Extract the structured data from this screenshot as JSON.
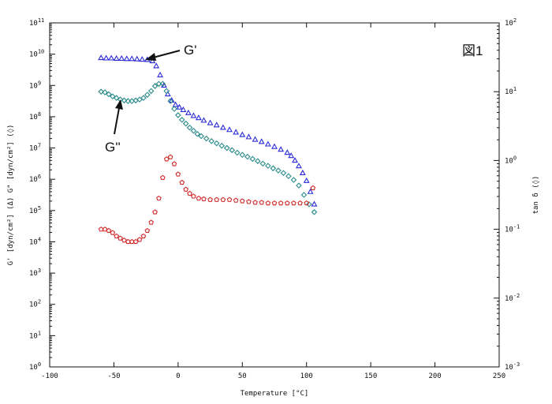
{
  "chart_data": {
    "type": "scatter",
    "figure_label": "図1",
    "xlabel": "Temperature [°C]",
    "ylabel_left": "G' [dyn/cm²] (Δ) G\" [dyn/cm²] (◊)",
    "ylabel_right": "tan δ (◊)",
    "xlim": [
      -100,
      250
    ],
    "x_ticks": [
      -100,
      -50,
      0,
      50,
      100,
      150,
      200,
      250
    ],
    "y_left_scale": "log",
    "y_left_lim_exp": [
      0,
      11
    ],
    "y_left_tick_exps": [
      0,
      1,
      2,
      3,
      4,
      5,
      6,
      7,
      8,
      9,
      10,
      11
    ],
    "y_right_scale": "log",
    "y_right_lim_exp": [
      -3,
      2
    ],
    "y_right_tick_exps": [
      -3,
      -2,
      -1,
      0,
      1,
      2
    ],
    "grid": false,
    "annotations": [
      {
        "text": "G'",
        "points_to_series": "G'"
      },
      {
        "text": "G''",
        "points_to_series": "G''"
      }
    ],
    "series": [
      {
        "id": "Gprime",
        "axis": "left",
        "marker": "triangle",
        "color": "#2a2ad8",
        "x": [
          -60,
          -56,
          -52,
          -48,
          -44,
          -40,
          -36,
          -32,
          -28,
          -24,
          -20,
          -17,
          -14,
          -11,
          -8,
          -5,
          -2,
          1,
          4,
          8,
          12,
          16,
          20,
          25,
          30,
          35,
          40,
          45,
          50,
          55,
          60,
          65,
          70,
          75,
          80,
          85,
          88,
          91,
          94,
          97,
          100,
          103,
          106
        ],
        "log10_y": [
          9.88,
          9.87,
          9.87,
          9.86,
          9.86,
          9.85,
          9.85,
          9.84,
          9.83,
          9.82,
          9.78,
          9.62,
          9.33,
          9.0,
          8.72,
          8.52,
          8.38,
          8.3,
          8.22,
          8.12,
          8.03,
          7.96,
          7.88,
          7.8,
          7.73,
          7.65,
          7.58,
          7.5,
          7.42,
          7.35,
          7.27,
          7.2,
          7.12,
          7.04,
          6.95,
          6.85,
          6.75,
          6.6,
          6.42,
          6.2,
          5.95,
          5.6,
          5.2
        ]
      },
      {
        "id": "Gdoubleprime",
        "axis": "left",
        "marker": "diamond",
        "color": "#2a8a8a",
        "x": [
          -60,
          -57,
          -54,
          -51,
          -48,
          -45,
          -42,
          -39,
          -36,
          -33,
          -30,
          -27,
          -24,
          -21,
          -18,
          -15,
          -12,
          -9,
          -6,
          -3,
          0,
          3,
          6,
          9,
          12,
          15,
          18,
          22,
          26,
          30,
          34,
          38,
          42,
          46,
          50,
          54,
          58,
          62,
          66,
          70,
          74,
          78,
          82,
          86,
          90,
          94,
          98,
          102,
          106
        ],
        "log10_y": [
          8.8,
          8.78,
          8.72,
          8.65,
          8.6,
          8.55,
          8.52,
          8.5,
          8.5,
          8.52,
          8.55,
          8.6,
          8.7,
          8.82,
          8.98,
          9.05,
          9.05,
          8.82,
          8.5,
          8.25,
          8.05,
          7.9,
          7.78,
          7.65,
          7.55,
          7.45,
          7.38,
          7.3,
          7.22,
          7.15,
          7.07,
          7.0,
          6.93,
          6.85,
          6.78,
          6.72,
          6.65,
          6.58,
          6.5,
          6.43,
          6.35,
          6.28,
          6.2,
          6.1,
          5.98,
          5.8,
          5.5,
          5.2,
          4.95
        ]
      },
      {
        "id": "tandelta",
        "axis": "right",
        "marker": "pentagon",
        "color": "#d42a2a",
        "x": [
          -60,
          -57,
          -54,
          -51,
          -48,
          -45,
          -42,
          -39,
          -36,
          -33,
          -30,
          -27,
          -24,
          -21,
          -18,
          -15,
          -12,
          -9,
          -6,
          -3,
          0,
          3,
          6,
          9,
          12,
          16,
          20,
          25,
          30,
          35,
          40,
          45,
          50,
          55,
          60,
          65,
          70,
          75,
          80,
          85,
          90,
          95,
          100,
          105
        ],
        "log10_y": [
          -1.0,
          -1.0,
          -1.02,
          -1.05,
          -1.1,
          -1.13,
          -1.16,
          -1.18,
          -1.18,
          -1.18,
          -1.15,
          -1.1,
          -1.02,
          -0.9,
          -0.75,
          -0.55,
          -0.25,
          0.02,
          0.05,
          -0.05,
          -0.2,
          -0.32,
          -0.42,
          -0.48,
          -0.52,
          -0.55,
          -0.56,
          -0.57,
          -0.57,
          -0.57,
          -0.57,
          -0.58,
          -0.59,
          -0.6,
          -0.61,
          -0.61,
          -0.62,
          -0.62,
          -0.62,
          -0.62,
          -0.62,
          -0.62,
          -0.62,
          -0.4
        ]
      }
    ]
  }
}
